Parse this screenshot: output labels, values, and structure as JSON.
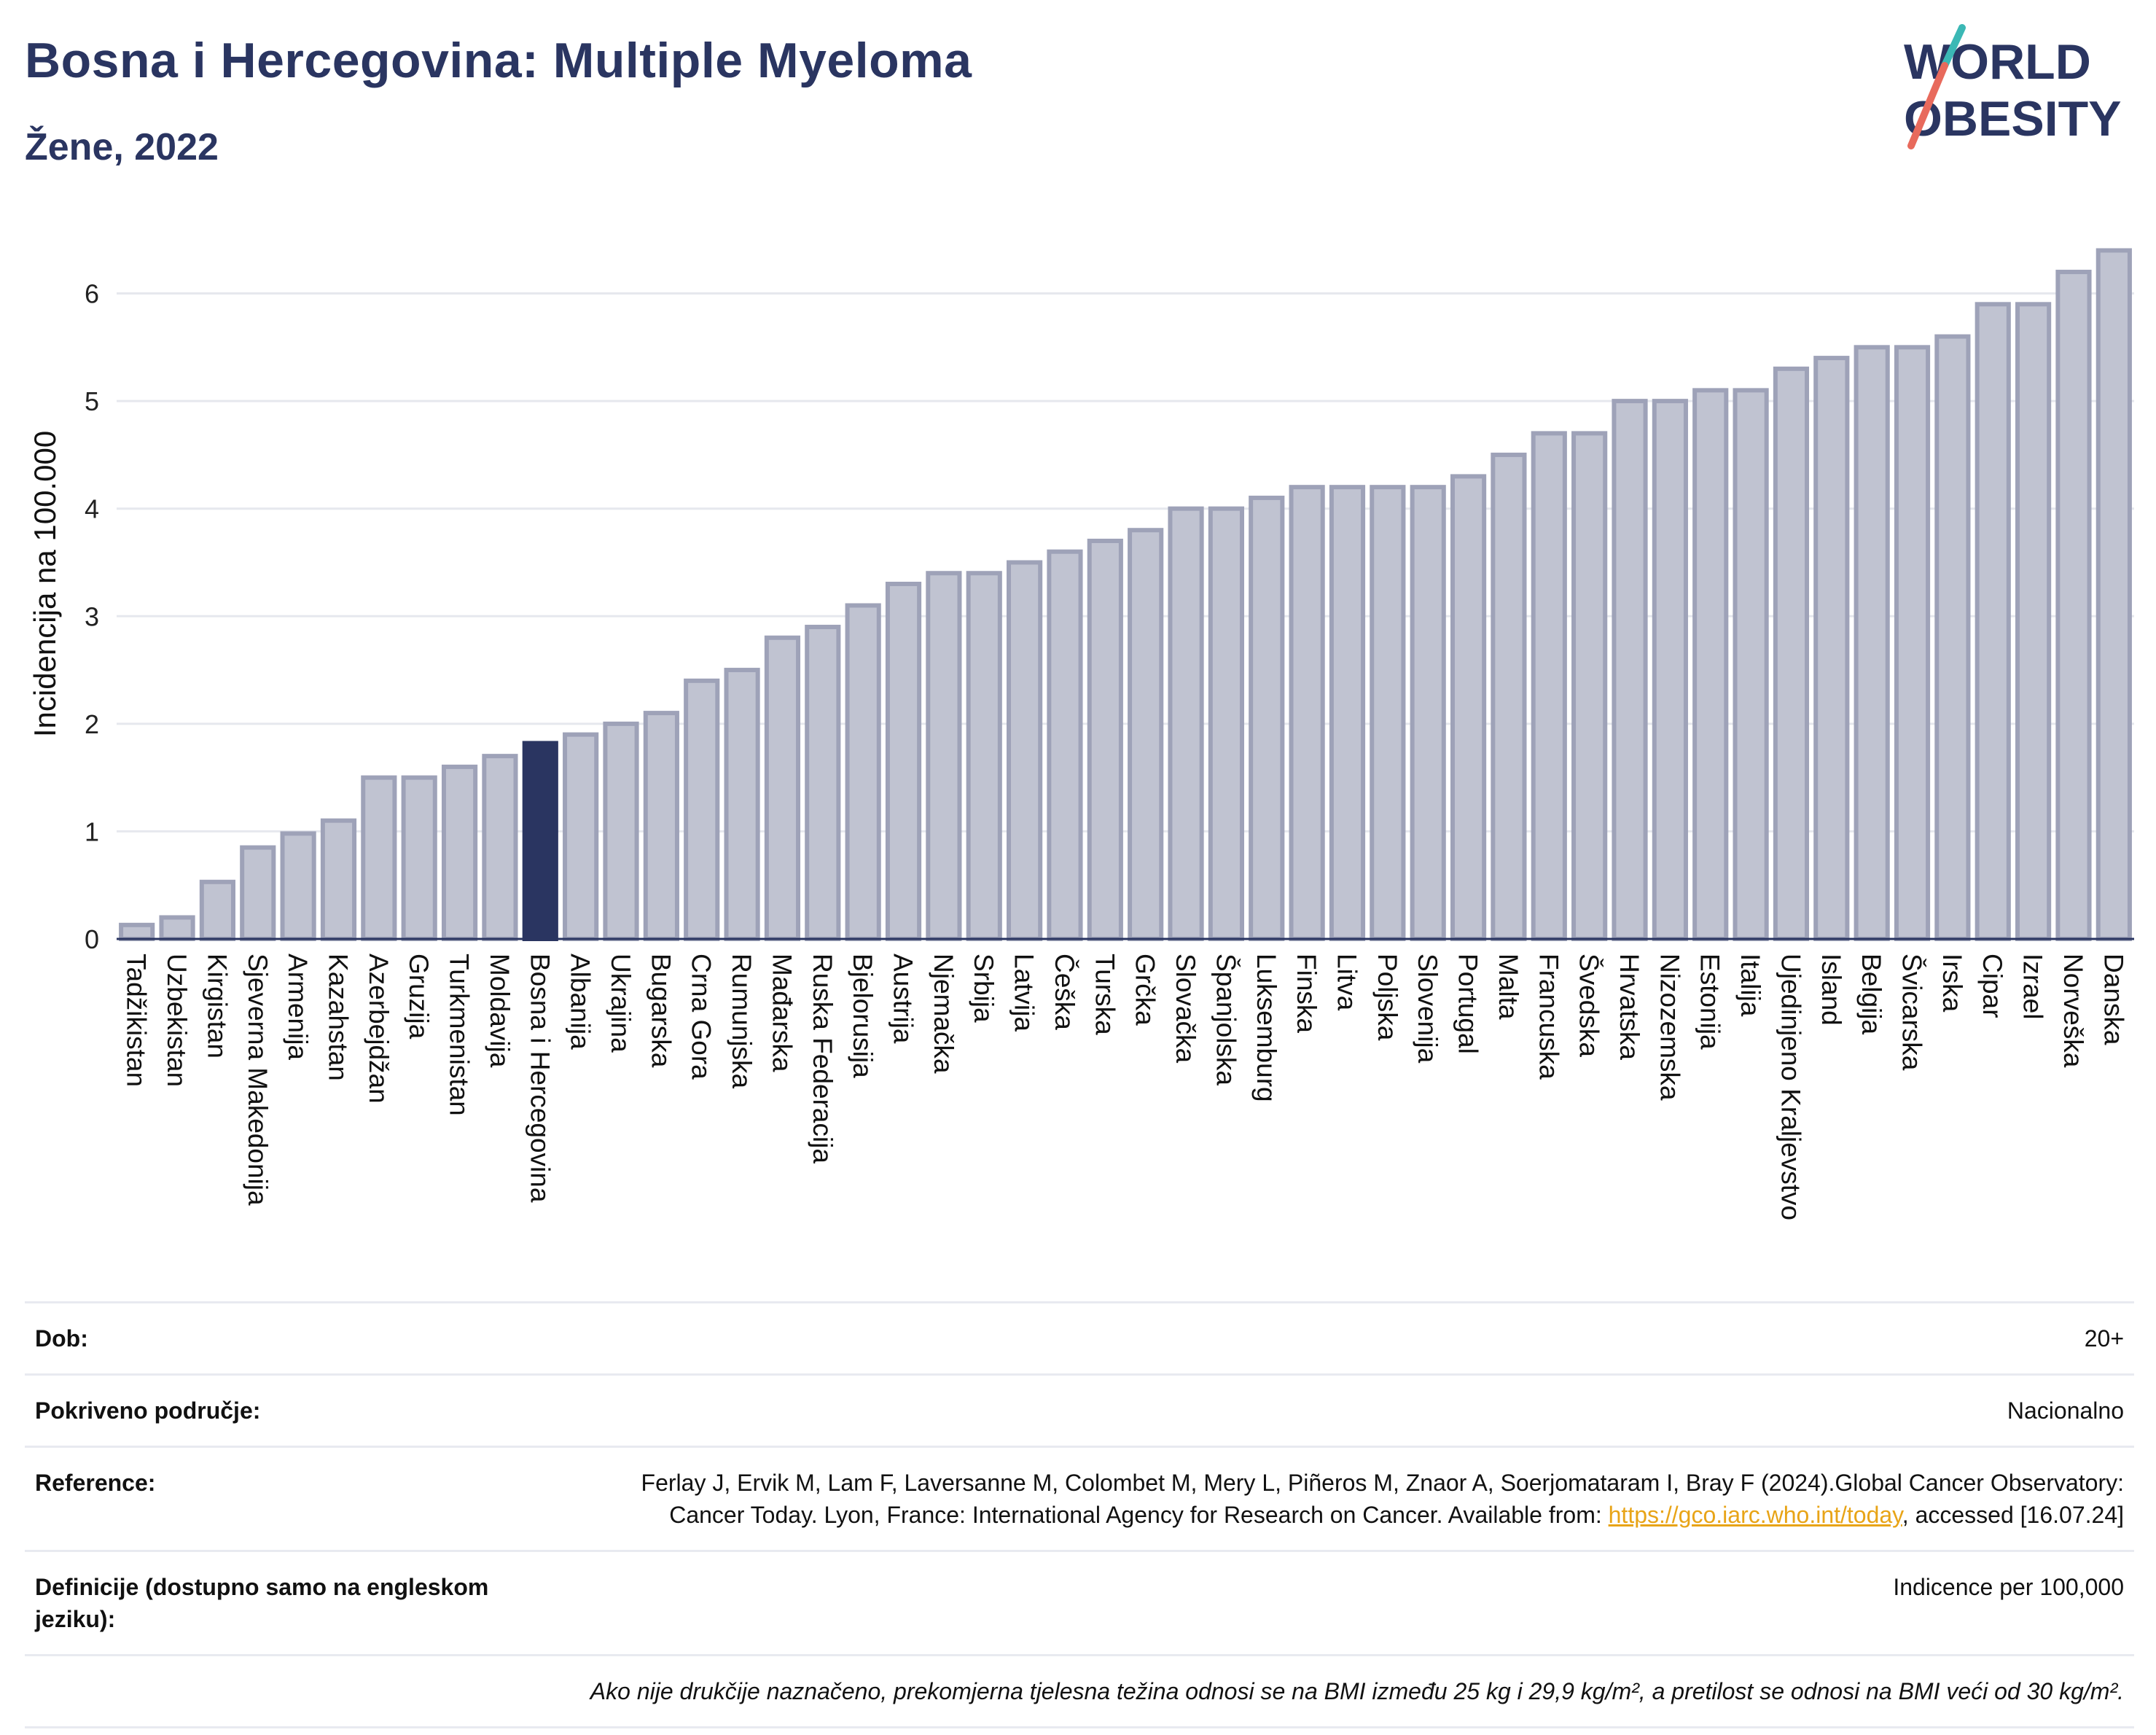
{
  "header": {
    "title": "Bosna i Hercegovina: Multiple Myeloma",
    "subtitle": "Žene, 2022"
  },
  "logo": {
    "line1": "WORLD",
    "line2": "OBESITY"
  },
  "chart_data": {
    "type": "bar",
    "ylabel": "Incidencija na 100.000",
    "xlabel": "",
    "ylim": [
      0,
      6.6
    ],
    "yticks": [
      0,
      1,
      2,
      3,
      4,
      5,
      6
    ],
    "grid": true,
    "highlight": "Bosna i Hercegovina",
    "colors": {
      "bar": "#c0c3d1",
      "bar_edge": "#9ea2b8",
      "highlight": "#2a3561",
      "grid": "#e6e8ee"
    },
    "categories": [
      "Tadžikistan",
      "Uzbekistan",
      "Kirgistan",
      "Sjeverna Makedonija",
      "Armenija",
      "Kazahstan",
      "Azerbejdžan",
      "Gruzija",
      "Turkmenistan",
      "Moldavija",
      "Bosna i Hercegovina",
      "Albanija",
      "Ukrajina",
      "Bugarska",
      "Crna Gora",
      "Rumunjska",
      "Mađarska",
      "Ruska Federacija",
      "Bjelorusija",
      "Austrija",
      "Njemačka",
      "Srbija",
      "Latvija",
      "Češka",
      "Turska",
      "Grčka",
      "Slovačka",
      "Španjolska",
      "Luksemburg",
      "Finska",
      "Litva",
      "Poljska",
      "Slovenija",
      "Portugal",
      "Malta",
      "Francuska",
      "Švedska",
      "Hrvatska",
      "Nizozemska",
      "Estonija",
      "Italija",
      "Ujedinjeno Kraljevstvo",
      "Island",
      "Belgija",
      "Švicarska",
      "Irska",
      "Cipar",
      "Izrael",
      "Norveška",
      "Danska"
    ],
    "values": [
      0.13,
      0.2,
      0.53,
      0.85,
      0.98,
      1.1,
      1.5,
      1.5,
      1.6,
      1.7,
      1.82,
      1.9,
      2.0,
      2.1,
      2.4,
      2.5,
      2.8,
      2.9,
      3.1,
      3.3,
      3.4,
      3.4,
      3.5,
      3.6,
      3.7,
      3.8,
      4.0,
      4.0,
      4.1,
      4.2,
      4.2,
      4.2,
      4.2,
      4.3,
      4.5,
      4.7,
      4.7,
      5.0,
      5.0,
      5.1,
      5.1,
      5.3,
      5.4,
      5.5,
      5.5,
      5.6,
      5.9,
      5.9,
      6.2,
      6.4
    ]
  },
  "info": {
    "age_label": "Dob:",
    "age_value": "20+",
    "coverage_label": "Pokriveno područje:",
    "coverage_value": "Nacionalno",
    "reference_label": "Reference:",
    "reference_text": "Ferlay J, Ervik M, Lam F, Laversanne M, Colombet M, Mery L, Piñeros M, Znaor A, Soerjomataram I, Bray F (2024).Global Cancer Observatory: Cancer Today. Lyon, France: International Agency for Research on Cancer. Available from: ",
    "reference_link": "https://gco.iarc.who.int/today",
    "reference_suffix": ", accessed [16.07.24]",
    "definitions_label": "Definicije (dostupno samo na engleskom jeziku):",
    "definitions_value": "Indicence per 100,000",
    "note": "Ako nije drukčije naznačeno, prekomjerna tjelesna težina odnosi se na BMI između 25 kg i 29,9 kg/m², a pretilost se odnosi na BMI veći od 30 kg/m²."
  }
}
